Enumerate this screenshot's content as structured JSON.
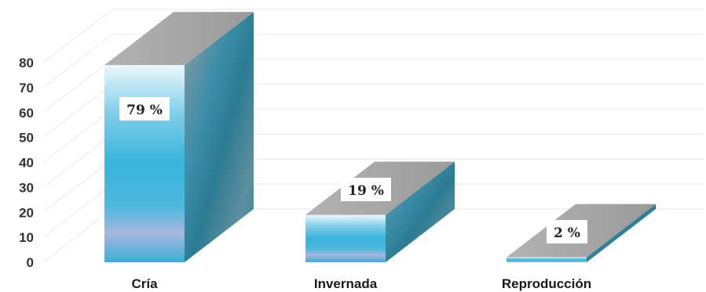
{
  "chart_data": {
    "type": "bar",
    "categories": [
      "Cría",
      "Invernada",
      "Reproducción"
    ],
    "values": [
      79,
      19,
      2
    ],
    "data_labels": [
      "79 %",
      "19 %",
      "2 %"
    ],
    "title": "",
    "xlabel": "",
    "ylabel": "",
    "ylim": [
      0,
      80
    ],
    "yticks": [
      "0",
      "10",
      "20",
      "30",
      "40",
      "50",
      "60",
      "70",
      "80"
    ],
    "grid": true,
    "legend": "none",
    "colors": {
      "front_top": "#e8f6fb",
      "front_mid": "#3db5dc",
      "front_band": "#a9b7dd",
      "side": "#3f8fa8",
      "side_dark": "#2a6d82",
      "top": "#a6a6a6",
      "grid": "#e6e6e6"
    }
  }
}
